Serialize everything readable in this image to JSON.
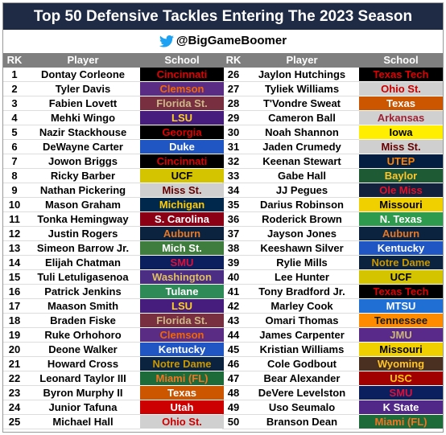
{
  "header": {
    "title": "Top 50 Defensive Tackles Entering The 2023 Season",
    "handle": "@BigGameBoomer"
  },
  "table": {
    "columns": [
      "RK",
      "Player",
      "School"
    ],
    "rows": [
      {
        "rank": 1,
        "player": "Dontay Corleone",
        "school": "Cincinnati",
        "bg": "#000000",
        "fg": "#e00000"
      },
      {
        "rank": 2,
        "player": "Tyler Davis",
        "school": "Clemson",
        "bg": "#5b2c83",
        "fg": "#f56600"
      },
      {
        "rank": 3,
        "player": "Fabien Lovett",
        "school": "Florida St.",
        "bg": "#782f40",
        "fg": "#ceb888"
      },
      {
        "rank": 4,
        "player": "Mehki Wingo",
        "school": "LSU",
        "bg": "#461d7c",
        "fg": "#fdd023"
      },
      {
        "rank": 5,
        "player": "Nazir Stackhouse",
        "school": "Georgia",
        "bg": "#000000",
        "fg": "#e00000"
      },
      {
        "rank": 6,
        "player": "DeWayne Carter",
        "school": "Duke",
        "bg": "#1f56c4",
        "fg": "#ffffff"
      },
      {
        "rank": 7,
        "player": "Jowon Briggs",
        "school": "Cincinnati",
        "bg": "#000000",
        "fg": "#e00000"
      },
      {
        "rank": 8,
        "player": "Ricky Barber",
        "school": "UCF",
        "bg": "#d4c400",
        "fg": "#000000"
      },
      {
        "rank": 9,
        "player": "Nathan Pickering",
        "school": "Miss St.",
        "bg": "#cfcfcf",
        "fg": "#660000"
      },
      {
        "rank": 10,
        "player": "Mason Graham",
        "school": "Michigan",
        "bg": "#00274c",
        "fg": "#ffcb05"
      },
      {
        "rank": 11,
        "player": "Tonka Hemingway",
        "school": "S. Carolina",
        "bg": "#8b0015",
        "fg": "#ffffff"
      },
      {
        "rank": 12,
        "player": "Justin Rogers",
        "school": "Auburn",
        "bg": "#0c2340",
        "fg": "#e87722"
      },
      {
        "rank": 13,
        "player": "Simeon Barrow Jr.",
        "school": "Mich St.",
        "bg": "#3f7d3f",
        "fg": "#ffffff"
      },
      {
        "rank": 14,
        "player": "Elijah Chatman",
        "school": "SMU",
        "bg": "#0b1f5e",
        "fg": "#e0103a"
      },
      {
        "rank": 15,
        "player": "Tuli Letuligasenoa",
        "school": "Washington",
        "bg": "#4b2e83",
        "fg": "#e0c060"
      },
      {
        "rank": 16,
        "player": "Patrick Jenkins",
        "school": "Tulane",
        "bg": "#2e8b57",
        "fg": "#ffffff"
      },
      {
        "rank": 17,
        "player": "Maason Smith",
        "school": "LSU",
        "bg": "#461d7c",
        "fg": "#fdd023"
      },
      {
        "rank": 18,
        "player": "Braden Fiske",
        "school": "Florida St.",
        "bg": "#782f40",
        "fg": "#ceb888"
      },
      {
        "rank": 19,
        "player": "Ruke Orhohoro",
        "school": "Clemson",
        "bg": "#5b2c83",
        "fg": "#f56600"
      },
      {
        "rank": 20,
        "player": "Deone Walker",
        "school": "Kentucky",
        "bg": "#1f56c4",
        "fg": "#ffffff"
      },
      {
        "rank": 21,
        "player": "Howard Cross",
        "school": "Notre Dame",
        "bg": "#0c2340",
        "fg": "#c99700"
      },
      {
        "rank": 22,
        "player": "Leonard Taylor III",
        "school": "Miami (FL)",
        "bg": "#1e6b3a",
        "fg": "#f47321"
      },
      {
        "rank": 23,
        "player": "Byron Murphy II",
        "school": "Texas",
        "bg": "#cc5500",
        "fg": "#ffffff"
      },
      {
        "rank": 24,
        "player": "Junior Tafuna",
        "school": "Utah",
        "bg": "#cc0000",
        "fg": "#ffffff"
      },
      {
        "rank": 25,
        "player": "Michael Hall",
        "school": "Ohio St.",
        "bg": "#d0d0d0",
        "fg": "#cc0000"
      },
      {
        "rank": 26,
        "player": "Jaylon Hutchings",
        "school": "Texas Tech",
        "bg": "#000000",
        "fg": "#e00000"
      },
      {
        "rank": 27,
        "player": "Tyliek Williams",
        "school": "Ohio St.",
        "bg": "#d0d0d0",
        "fg": "#cc0000"
      },
      {
        "rank": 28,
        "player": "T'Vondre Sweat",
        "school": "Texas",
        "bg": "#cc5500",
        "fg": "#ffffff"
      },
      {
        "rank": 29,
        "player": "Cameron Ball",
        "school": "Arkansas",
        "bg": "#d0d0d0",
        "fg": "#9d2235"
      },
      {
        "rank": 30,
        "player": "Noah Shannon",
        "school": "Iowa",
        "bg": "#ffee00",
        "fg": "#000000"
      },
      {
        "rank": 31,
        "player": "Jaden Crumedy",
        "school": "Miss St.",
        "bg": "#cfcfcf",
        "fg": "#660000"
      },
      {
        "rank": 32,
        "player": "Keenan Stewart",
        "school": "UTEP",
        "bg": "#041e42",
        "fg": "#ff8200"
      },
      {
        "rank": 33,
        "player": "Gabe Hall",
        "school": "Baylor",
        "bg": "#1e5a34",
        "fg": "#ffc72c"
      },
      {
        "rank": 34,
        "player": "JJ Pegues",
        "school": "Ole Miss",
        "bg": "#14213d",
        "fg": "#e0102a"
      },
      {
        "rank": 35,
        "player": "Darius Robinson",
        "school": "Missouri",
        "bg": "#f1d000",
        "fg": "#000000"
      },
      {
        "rank": 36,
        "player": "Roderick Brown",
        "school": "N. Texas",
        "bg": "#2e9a4e",
        "fg": "#ffffff"
      },
      {
        "rank": 37,
        "player": "Jayson Jones",
        "school": "Auburn",
        "bg": "#0c2340",
        "fg": "#e87722"
      },
      {
        "rank": 38,
        "player": "Keeshawn Silver",
        "school": "Kentucky",
        "bg": "#1f56c4",
        "fg": "#ffffff"
      },
      {
        "rank": 39,
        "player": "Rylie Mills",
        "school": "Notre Dame",
        "bg": "#0c2340",
        "fg": "#c99700"
      },
      {
        "rank": 40,
        "player": "Lee Hunter",
        "school": "UCF",
        "bg": "#d4c400",
        "fg": "#000000"
      },
      {
        "rank": 41,
        "player": "Tony Bradford Jr.",
        "school": "Texas Tech",
        "bg": "#000000",
        "fg": "#e00000"
      },
      {
        "rank": 42,
        "player": "Marley Cook",
        "school": "MTSU",
        "bg": "#1f6fd4",
        "fg": "#ffffff"
      },
      {
        "rank": 43,
        "player": "Omari Thomas",
        "school": "Tennessee",
        "bg": "#ff8c00",
        "fg": "#1a1a1a"
      },
      {
        "rank": 44,
        "player": "James Carpenter",
        "school": "JMU",
        "bg": "#5a2a8a",
        "fg": "#cbb677"
      },
      {
        "rank": 45,
        "player": "Kristian Williams",
        "school": "Missouri",
        "bg": "#f1d000",
        "fg": "#000000"
      },
      {
        "rank": 46,
        "player": "Cole Godbout",
        "school": "Wyoming",
        "bg": "#4a3020",
        "fg": "#ffc425"
      },
      {
        "rank": 47,
        "player": "Bear Alexander",
        "school": "USC",
        "bg": "#a00000",
        "fg": "#ffcc00"
      },
      {
        "rank": 48,
        "player": "DeVere Levelston",
        "school": "SMU",
        "bg": "#0b1f5e",
        "fg": "#e0103a"
      },
      {
        "rank": 49,
        "player": "Uso Seumalo",
        "school": "K State",
        "bg": "#512888",
        "fg": "#ffffff"
      },
      {
        "rank": 50,
        "player": "Branson Dean",
        "school": "Miami (FL)",
        "bg": "#1e6b3a",
        "fg": "#f47321"
      }
    ]
  }
}
